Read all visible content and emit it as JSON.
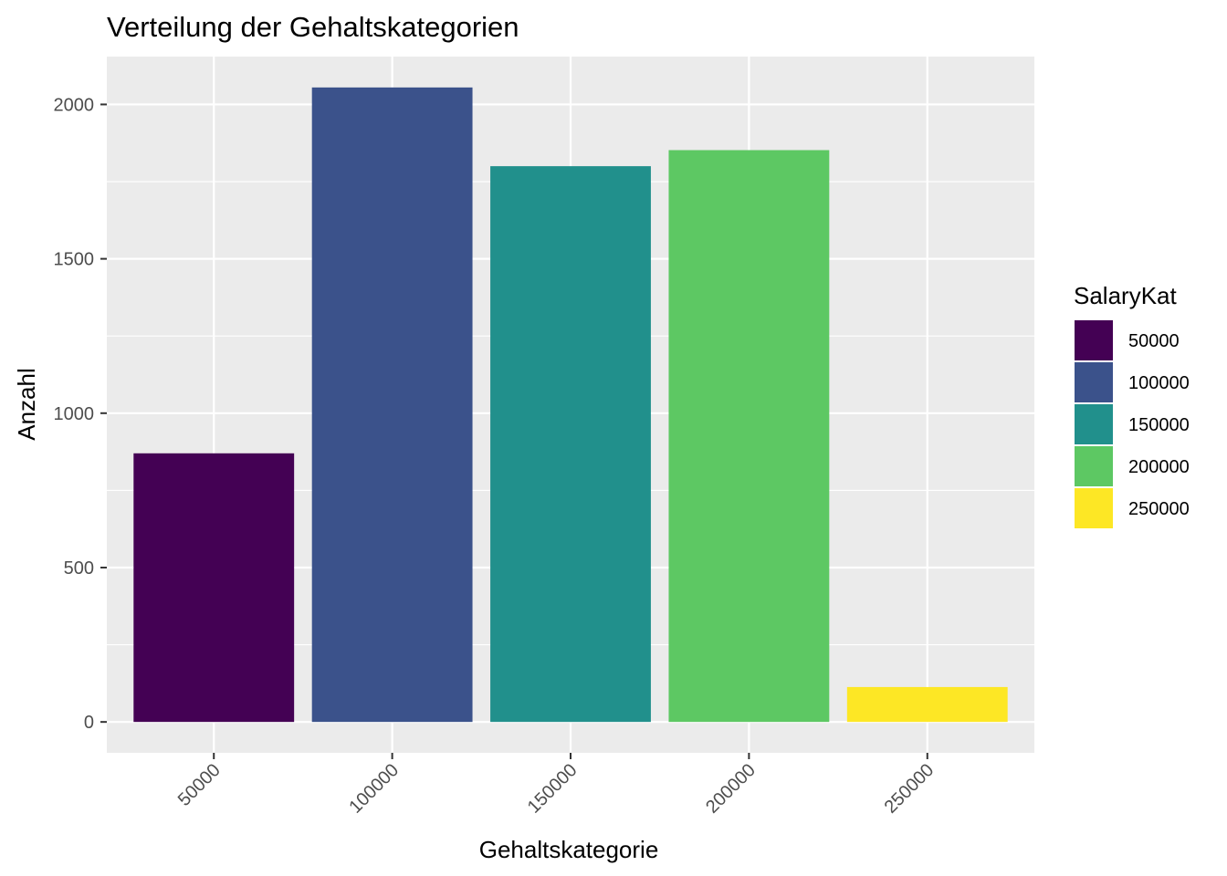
{
  "chart_data": {
    "type": "bar",
    "title": "Verteilung der Gehaltskategorien",
    "xlabel": "Gehaltskategorie",
    "ylabel": "Anzahl",
    "categories": [
      "50000",
      "100000",
      "150000",
      "200000",
      "250000"
    ],
    "values": [
      870,
      2055,
      1800,
      1852,
      113
    ],
    "colors": [
      "#440154",
      "#3B528B",
      "#21908C",
      "#5DC863",
      "#FDE725"
    ],
    "ylim": [
      -100,
      2155
    ],
    "yticks": [
      0,
      500,
      1000,
      1500,
      2000
    ],
    "ytick_labels": [
      "0",
      "500",
      "1000",
      "1500",
      "2000"
    ],
    "grid": true,
    "x_tick_rotation_deg": 45,
    "legend": {
      "title": "SalaryKat",
      "position": "right",
      "items": [
        "50000",
        "100000",
        "150000",
        "200000",
        "250000"
      ]
    }
  }
}
